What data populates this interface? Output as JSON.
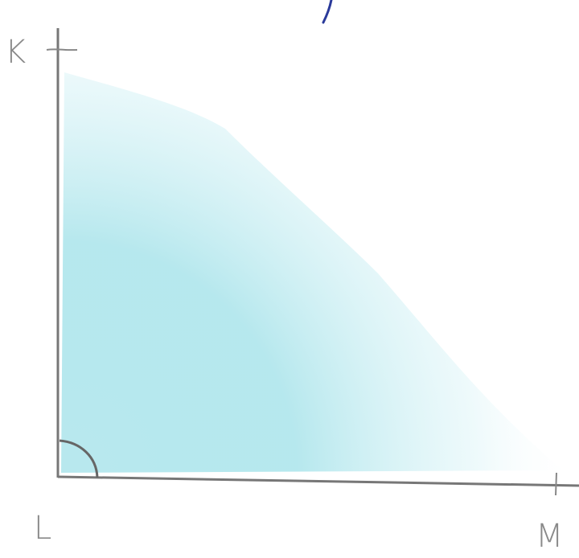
{
  "vertices": [
    {
      "label": "K"
    },
    {
      "label": "L"
    },
    {
      "label": "M"
    }
  ]
}
